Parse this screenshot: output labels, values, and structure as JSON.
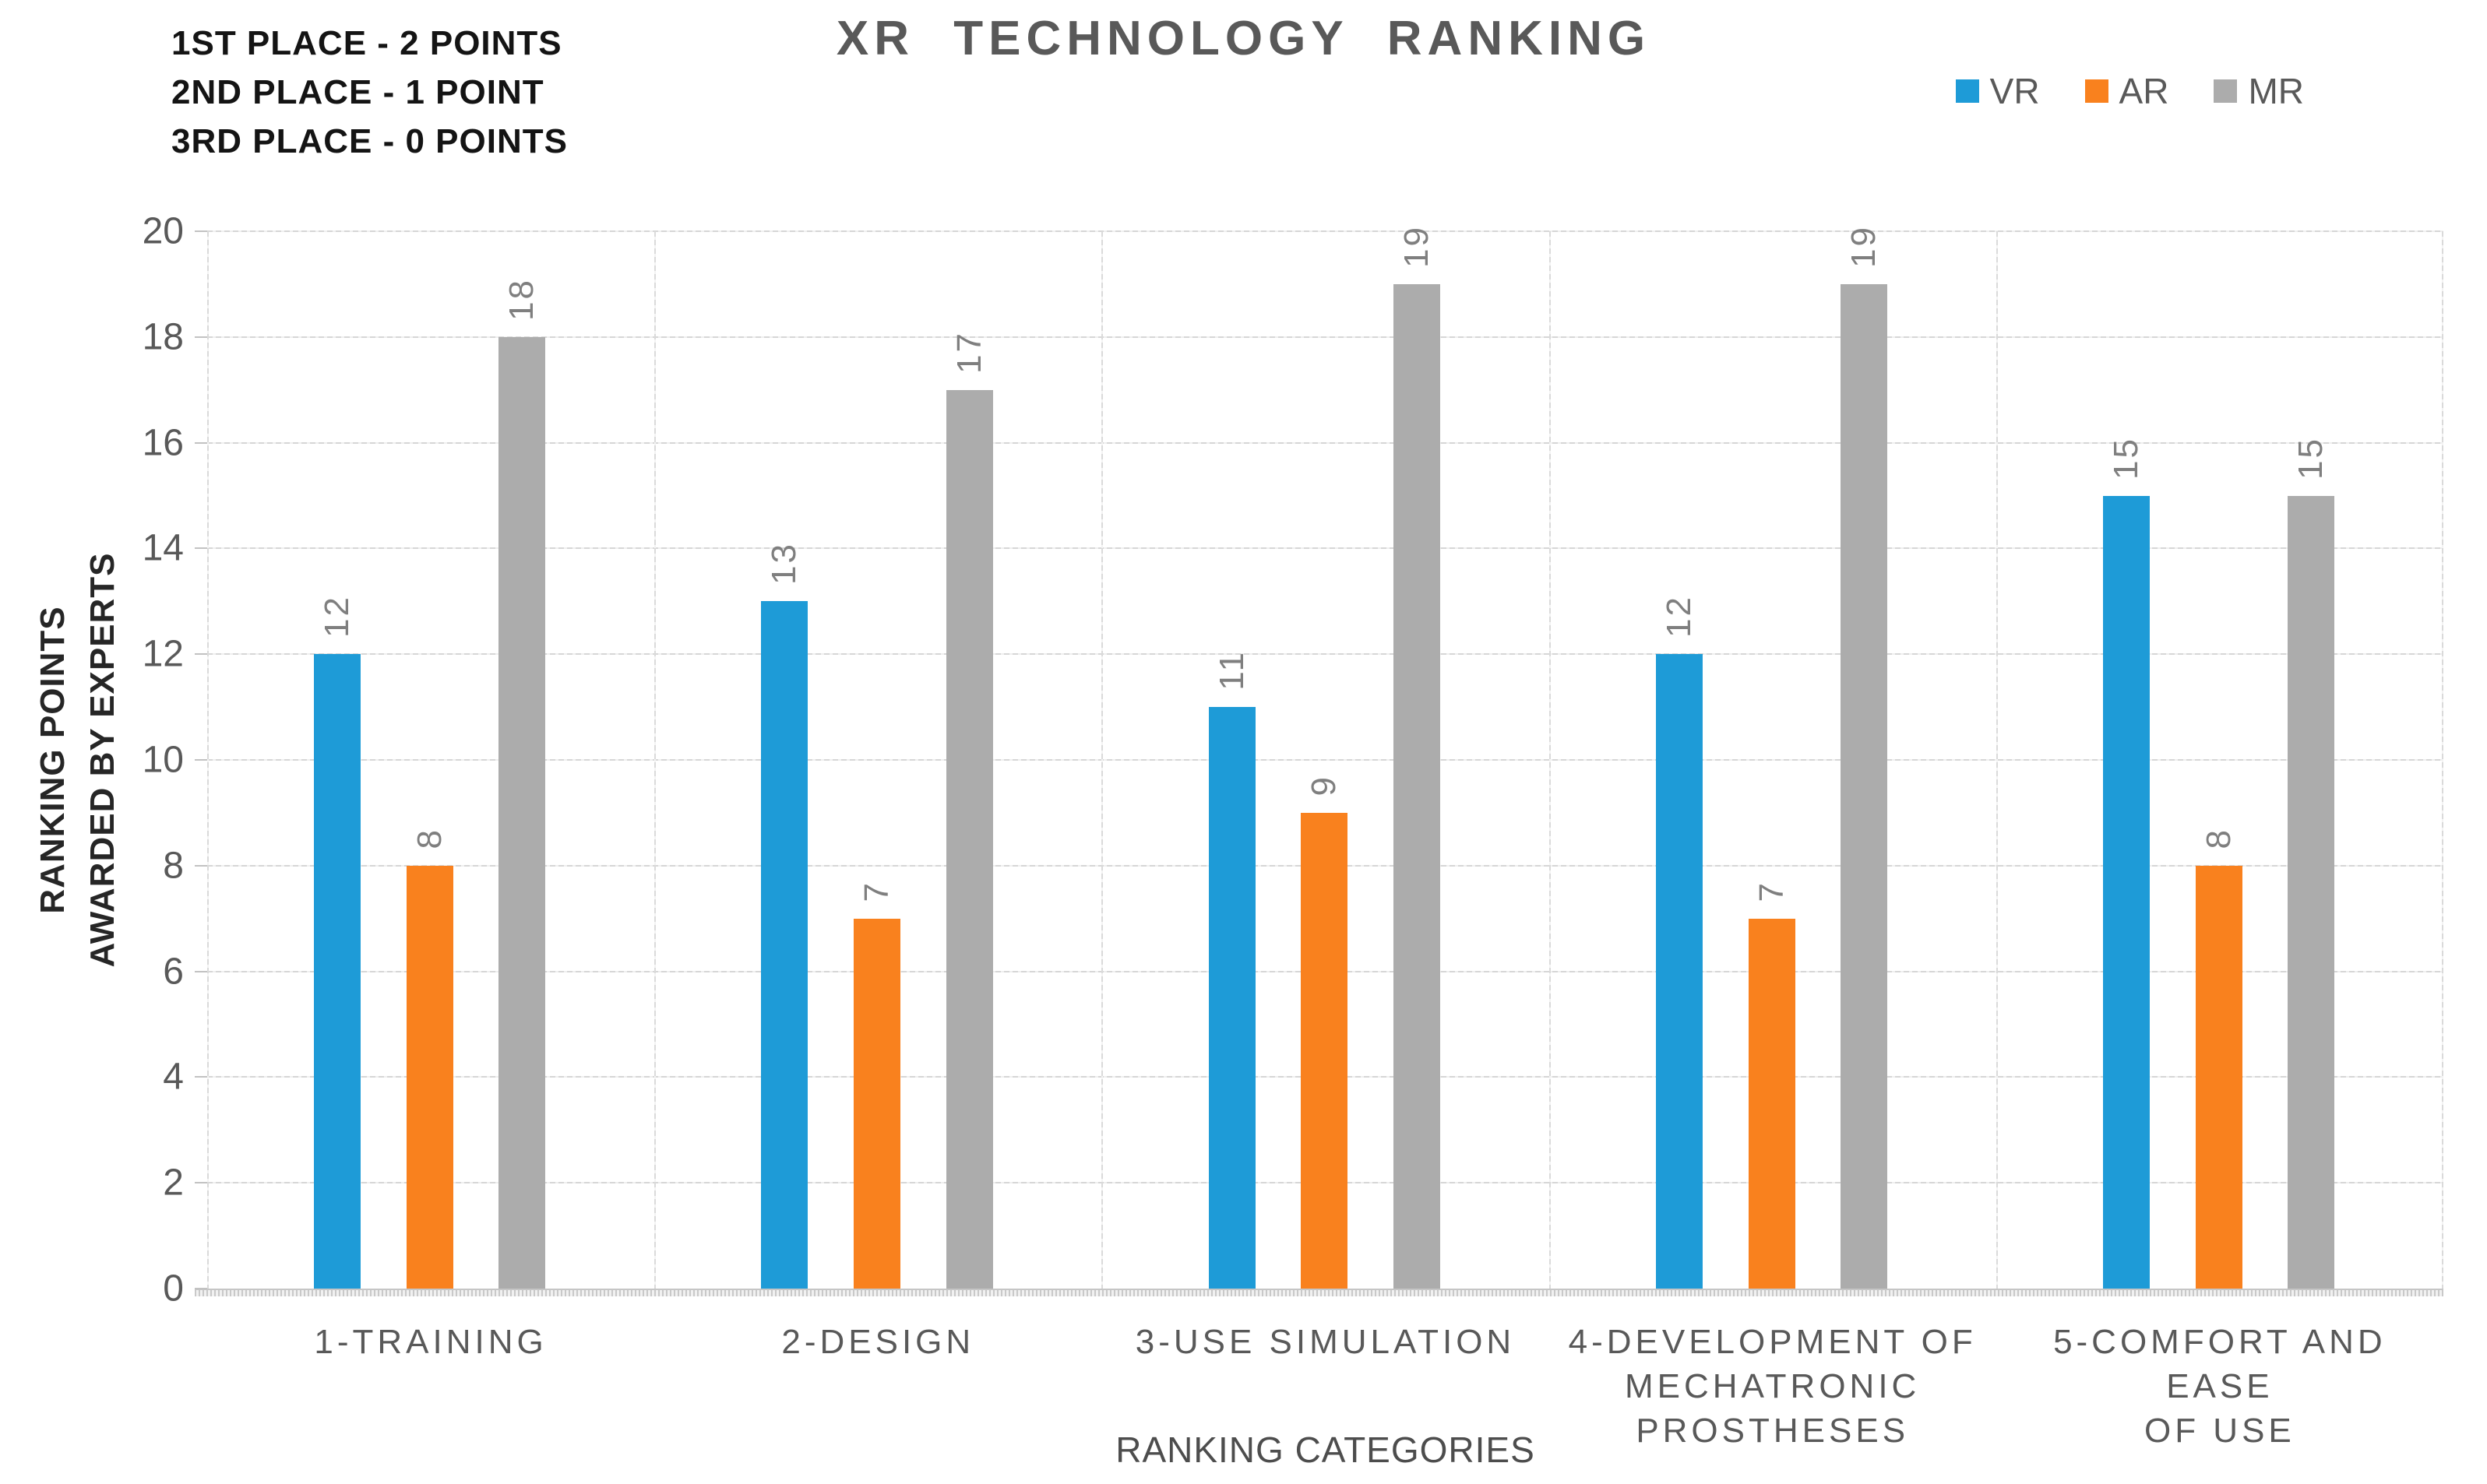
{
  "title": "XR TECHNOLOGY RANKING",
  "note": {
    "lines": [
      "1ST PLACE - 2 POINTS",
      "2ND PLACE - 1 POINT",
      "3RD PLACE - 0 POINTS"
    ]
  },
  "legend": [
    {
      "label": "VR",
      "color": "#1e9bd7",
      "pattern": false
    },
    {
      "label": "AR",
      "color": "#f9811e",
      "pattern": false
    },
    {
      "label": "MR",
      "color": "#acacac",
      "pattern": true
    }
  ],
  "y_axis": {
    "title_lines": [
      "RANKING POINTS",
      "AWARDED BY EXPERTS"
    ],
    "ticks": [
      0,
      2,
      4,
      6,
      8,
      10,
      12,
      14,
      16,
      18,
      20
    ]
  },
  "x_axis": {
    "title": "RANKING CATEGORIES"
  },
  "colors": {
    "grid": "#d9d9d9",
    "axis_text": "#595959",
    "data_label": "#7f7f7f",
    "vr": "#1e9bd7",
    "ar": "#f9811e",
    "mr": "#acacac"
  },
  "chart_data": {
    "type": "bar",
    "title": "XR TECHNOLOGY RANKING",
    "xlabel": "RANKING CATEGORIES",
    "ylabel": "RANKING POINTS AWARDED BY EXPERTS",
    "categories": [
      "1-TRAINING",
      "2-DESIGN",
      "3-USE SIMULATION",
      "4-DEVELOPMENT OF MECHATRONIC PROSTHESES",
      "5-COMFORT AND EASE OF USE"
    ],
    "categories_lines": [
      [
        "1-TRAINING"
      ],
      [
        "2-DESIGN"
      ],
      [
        "3-USE SIMULATION"
      ],
      [
        "4-DEVELOPMENT OF",
        "MECHATRONIC",
        "PROSTHESES"
      ],
      [
        "5-COMFORT AND EASE",
        "OF USE"
      ]
    ],
    "series": [
      {
        "name": "VR",
        "color": "#1e9bd7",
        "pattern": false,
        "values": [
          12,
          13,
          11,
          12,
          15
        ]
      },
      {
        "name": "AR",
        "color": "#f9811e",
        "pattern": false,
        "values": [
          8,
          7,
          9,
          7,
          8
        ]
      },
      {
        "name": "MR",
        "color": "#acacac",
        "pattern": true,
        "values": [
          18,
          17,
          19,
          19,
          15
        ]
      }
    ],
    "ylim": [
      0,
      20
    ],
    "ytick_step": 2,
    "grid": true,
    "legend_position": "top-right",
    "bar_label_rotation": -90
  }
}
